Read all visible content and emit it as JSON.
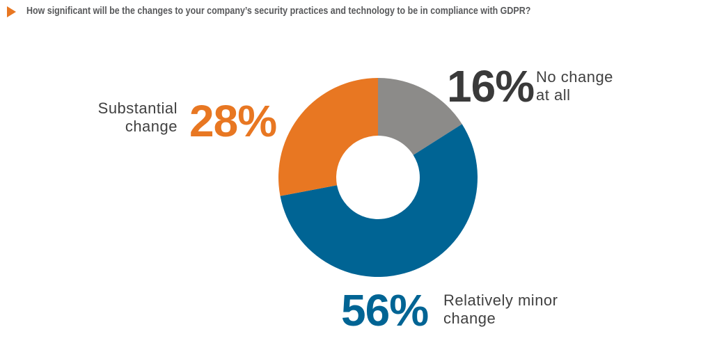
{
  "chart_data": {
    "type": "donut",
    "title": "How significant will be the changes to your company’s security practices and technology to be in compliance with GDPR?",
    "categories": [
      "No change at all",
      "Relatively minor change",
      "Substantial change"
    ],
    "values": [
      16,
      56,
      28
    ],
    "value_labels": [
      "16%",
      "56%",
      "28%"
    ],
    "colors": [
      "#8c8b89",
      "#006494",
      "#e87722"
    ]
  }
}
